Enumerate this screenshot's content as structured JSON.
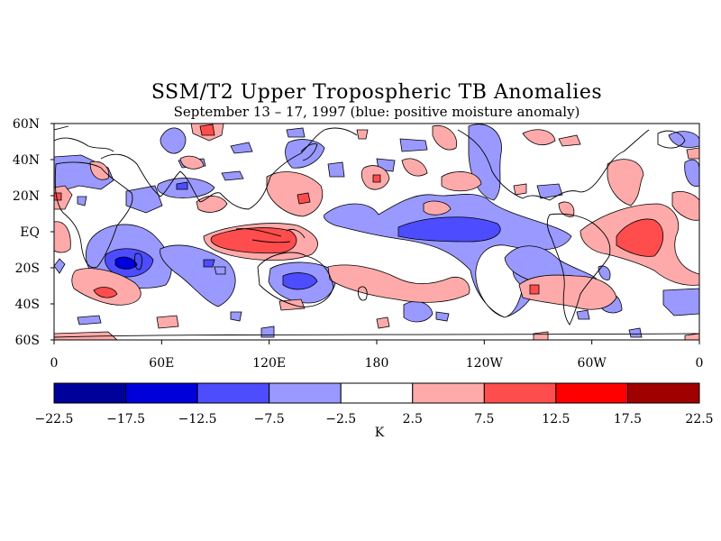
{
  "title": "SSM/T2 Upper Tropospheric TB Anomalies",
  "subtitle": "September 13 – 17, 1997 (blue: positive moisture anomaly)",
  "lat_labels": [
    "60N",
    "40N",
    "20N",
    "EQ",
    "20S",
    "40S",
    "60S"
  ],
  "lon_labels": [
    "0",
    "60E",
    "120E",
    "180",
    "120W",
    "60W",
    "0"
  ],
  "colorbar": {
    "ticks": [
      "−22.5",
      "−17.5",
      "−12.5",
      "−7.5",
      "−2.5",
      "2.5",
      "7.5",
      "12.5",
      "17.5",
      "22.5"
    ],
    "colors": [
      "#00009a",
      "#0000dc",
      "#4d4dff",
      "#9999ff",
      "#ffffff",
      "#ffaaaa",
      "#ff4d4d",
      "#ff0000",
      "#a00000"
    ],
    "unit": "K"
  },
  "colors": {
    "light_blue": "#9999ff",
    "medium_blue": "#4d4dff",
    "dark_blue": "#0000dc",
    "light_red": "#ffaaaa",
    "medium_red": "#ff4d4d"
  }
}
